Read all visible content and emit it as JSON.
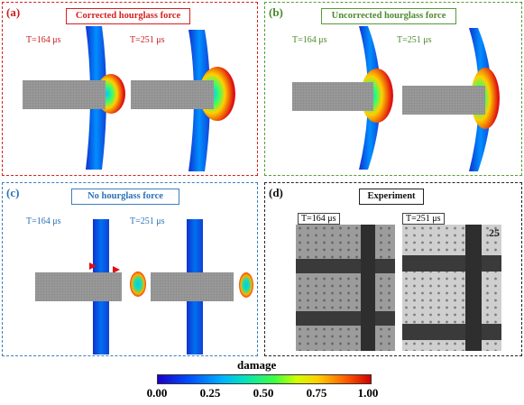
{
  "panels": [
    {
      "letter": "(a)",
      "title": "Corrected hourglass force",
      "times": [
        "T=164 μs",
        "T=251 μs"
      ],
      "title_color": "#d62020",
      "label_color": "#c81e1e"
    },
    {
      "letter": "(b)",
      "title": "Uncorrected hourglass force",
      "times": [
        "T=164 μs",
        "T=251 μs"
      ],
      "title_color": "#4f8a2e",
      "label_color": "#4a8a2a"
    },
    {
      "letter": "(c)",
      "title": "No hourglass force",
      "times": [
        "T=164 μs",
        "T=251 μs"
      ],
      "title_color": "#2a72b8",
      "label_color": "#2a72b8"
    },
    {
      "letter": "(d)",
      "title": "Experiment",
      "times": [
        "T=164 μs",
        "T=251 μs"
      ],
      "title_color": "#111111",
      "label_color": "#111111"
    }
  ],
  "experiment": {
    "corner_text": "25"
  },
  "colorbar": {
    "title": "damage",
    "ticks": [
      "0.00",
      "0.25",
      "0.50",
      "0.75",
      "1.00"
    ]
  }
}
